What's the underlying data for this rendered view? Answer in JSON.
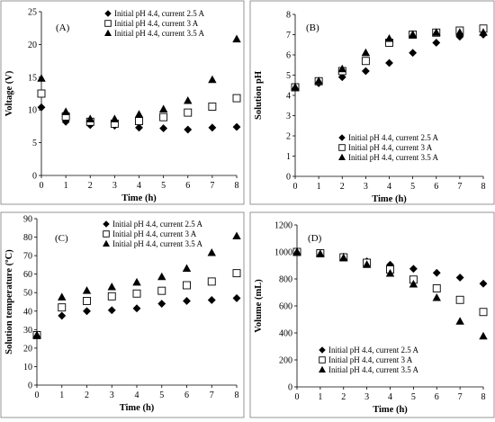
{
  "chart_data": [
    {
      "type": "scatter",
      "panel_label": "(A)",
      "xlabel": "Time (h)",
      "ylabel": "Voltage (V)",
      "x": [
        0,
        1,
        2,
        3,
        4,
        5,
        6,
        7,
        8
      ],
      "xlim": [
        0,
        8
      ],
      "ylim": [
        0,
        25
      ],
      "xticks": [
        0,
        1,
        2,
        3,
        4,
        5,
        6,
        7,
        8
      ],
      "yticks": [
        0,
        5,
        10,
        15,
        20,
        25
      ],
      "legend_position": "top-right",
      "series": [
        {
          "name": "Initial pH 4.4, current 2.5 A",
          "marker": "diamond",
          "values": [
            10.4,
            8.2,
            7.7,
            7.6,
            7.3,
            7.2,
            7.0,
            7.3,
            7.4
          ]
        },
        {
          "name": "Initial pH 4.4, current 3 A",
          "marker": "square",
          "values": [
            12.5,
            9.0,
            8.2,
            7.9,
            8.3,
            8.9,
            9.6,
            10.5,
            11.8
          ]
        },
        {
          "name": "Initial pH 4.4, current 3.5 A",
          "marker": "triangle",
          "values": [
            14.8,
            9.7,
            8.6,
            8.6,
            9.3,
            10.1,
            11.4,
            14.6,
            20.8
          ]
        }
      ]
    },
    {
      "type": "scatter",
      "panel_label": "(B)",
      "xlabel": "Time (h)",
      "ylabel": "Solution pH",
      "x": [
        0,
        1,
        2,
        3,
        4,
        5,
        6,
        7,
        8
      ],
      "xlim": [
        0,
        8
      ],
      "ylim": [
        0,
        8
      ],
      "xticks": [
        0,
        1,
        2,
        3,
        4,
        5,
        6,
        7,
        8
      ],
      "yticks": [
        0,
        1,
        2,
        3,
        4,
        5,
        6,
        7,
        8
      ],
      "legend_position": "bottom-right",
      "series": [
        {
          "name": "Initial pH 4.4, current 2.5 A",
          "marker": "diamond",
          "values": [
            4.4,
            4.6,
            4.9,
            5.2,
            5.6,
            6.1,
            6.6,
            6.9,
            7.0
          ]
        },
        {
          "name": "Initial pH 4.4, current 3 A",
          "marker": "square",
          "values": [
            4.4,
            4.7,
            5.2,
            5.7,
            6.6,
            7.0,
            7.1,
            7.2,
            7.3
          ]
        },
        {
          "name": "Initial pH 4.4, current 3.5 A",
          "marker": "triangle",
          "values": [
            4.4,
            4.7,
            5.3,
            6.1,
            6.8,
            7.0,
            7.1,
            7.1,
            7.1
          ]
        }
      ]
    },
    {
      "type": "scatter",
      "panel_label": "(C)",
      "xlabel": "Time (h)",
      "ylabel": "Solution temperature (ºC)",
      "x": [
        0,
        1,
        2,
        3,
        4,
        5,
        6,
        7,
        8
      ],
      "xlim": [
        0,
        8
      ],
      "ylim": [
        0,
        90
      ],
      "xticks": [
        0,
        1,
        2,
        3,
        4,
        5,
        6,
        7,
        8
      ],
      "yticks": [
        0,
        10,
        20,
        30,
        40,
        50,
        60,
        70,
        80,
        90
      ],
      "legend_position": "top-right",
      "series": [
        {
          "name": "Initial pH 4.4, current 2.5 A",
          "marker": "diamond",
          "values": [
            27,
            37.5,
            40,
            40.5,
            41.5,
            44,
            45.5,
            46,
            47
          ]
        },
        {
          "name": "Initial pH 4.4, current 3 A",
          "marker": "square",
          "values": [
            27,
            42,
            45.5,
            48,
            49.5,
            51,
            54,
            56,
            60.5
          ]
        },
        {
          "name": "Initial pH 4.4, current 3.5 A",
          "marker": "triangle",
          "values": [
            27,
            47.5,
            51,
            53,
            55.5,
            58.5,
            63,
            71.5,
            80.5
          ]
        }
      ]
    },
    {
      "type": "scatter",
      "panel_label": "(D)",
      "xlabel": "Time (h)",
      "ylabel": "Volume (mL)",
      "x": [
        0,
        1,
        2,
        3,
        4,
        5,
        6,
        7,
        8
      ],
      "xlim": [
        0,
        8
      ],
      "ylim": [
        0,
        1200
      ],
      "xticks": [
        0,
        1,
        2,
        3,
        4,
        5,
        6,
        7,
        8
      ],
      "yticks": [
        0,
        200,
        400,
        600,
        800,
        1000,
        1200
      ],
      "legend_position": "bottom-left",
      "series": [
        {
          "name": "Initial pH 4.4, current 2.5 A",
          "marker": "diamond",
          "values": [
            1000,
            990,
            965,
            930,
            905,
            875,
            845,
            810,
            765
          ]
        },
        {
          "name": "Initial pH 4.4, current 3 A",
          "marker": "square",
          "values": [
            1000,
            990,
            960,
            920,
            870,
            795,
            730,
            645,
            555
          ]
        },
        {
          "name": "Initial pH 4.4, current 3.5 A",
          "marker": "triangle",
          "values": [
            1000,
            985,
            955,
            905,
            840,
            760,
            660,
            485,
            375
          ]
        }
      ]
    }
  ]
}
